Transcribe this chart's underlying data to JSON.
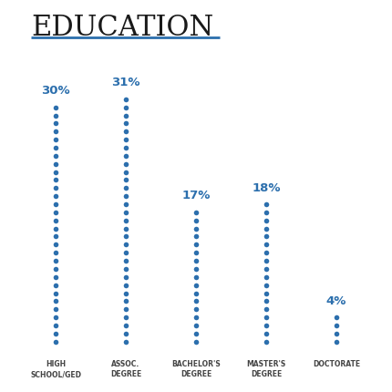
{
  "title": "EDUCATION",
  "title_fontsize": 22,
  "title_color": "#1a1a1a",
  "underline_color": "#2c6fad",
  "categories": [
    "HIGH\nSCHOOL/GED",
    "ASSOC.\nDEGREE",
    "BACHELOR'S\nDEGREE",
    "MASTER'S\nDEGREE",
    "DOCTORATE"
  ],
  "values": [
    30,
    31,
    17,
    18,
    4
  ],
  "dot_color": "#2c6fad",
  "label_color": "#2c6fad",
  "label_fontsize": 9.5,
  "xlabel_fontsize": 5.5,
  "xlabel_color": "#444444",
  "background_color": "#ffffff",
  "dot_markersize": 4.0,
  "max_dots": 31,
  "figsize": [
    4.3,
    4.3
  ],
  "dpi": 100
}
